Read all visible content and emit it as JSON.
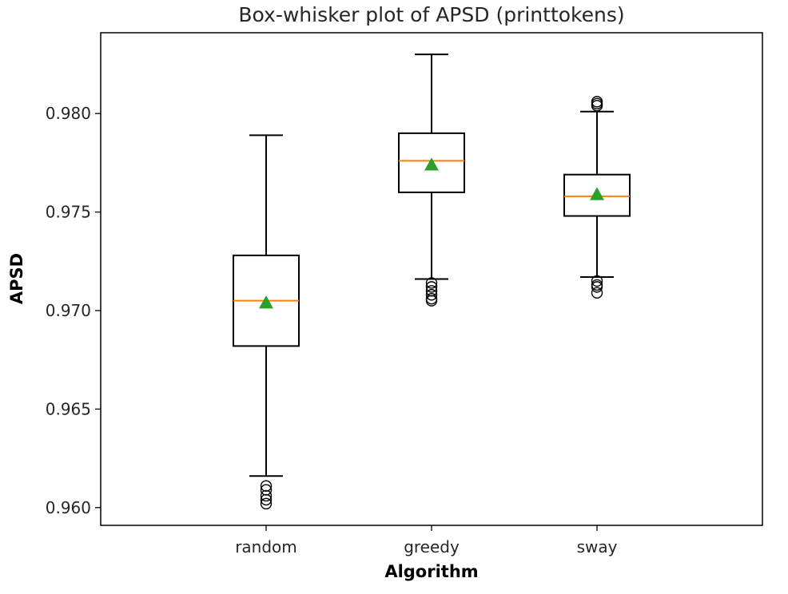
{
  "chart_data": {
    "type": "box",
    "title": "Box-whisker plot of APSD (printtokens)",
    "xlabel": "Algorithm",
    "ylabel": "APSD",
    "ylim": [
      0.9591,
      0.9841
    ],
    "yticks": [
      0.96,
      0.965,
      0.97,
      0.975,
      0.98
    ],
    "ytick_labels": [
      "0.960",
      "0.965",
      "0.970",
      "0.975",
      "0.980"
    ],
    "categories": [
      "random",
      "greedy",
      "sway"
    ],
    "grid": false,
    "colors": {
      "box": "#000000",
      "median": "#ff7f0e",
      "mean": "#2ca02c",
      "flier": "#000000"
    },
    "boxes": [
      {
        "name": "random",
        "whisker_low": 0.9616,
        "q1": 0.9682,
        "median": 0.9705,
        "q3": 0.9728,
        "whisker_high": 0.9789,
        "mean": 0.9704,
        "fliers": [
          0.9611,
          0.9609,
          0.9606,
          0.9604,
          0.9602
        ]
      },
      {
        "name": "greedy",
        "whisker_low": 0.9716,
        "q1": 0.976,
        "median": 0.9776,
        "q3": 0.979,
        "whisker_high": 0.983,
        "mean": 0.9774,
        "fliers": [
          0.9714,
          0.9712,
          0.971,
          0.9708,
          0.9706,
          0.9705
        ]
      },
      {
        "name": "sway",
        "whisker_low": 0.9717,
        "q1": 0.9748,
        "median": 0.9758,
        "q3": 0.9769,
        "whisker_high": 0.9801,
        "mean": 0.9759,
        "fliers": [
          0.9806,
          0.9805,
          0.9804,
          0.9715,
          0.9713,
          0.9712,
          0.9709
        ]
      }
    ]
  }
}
